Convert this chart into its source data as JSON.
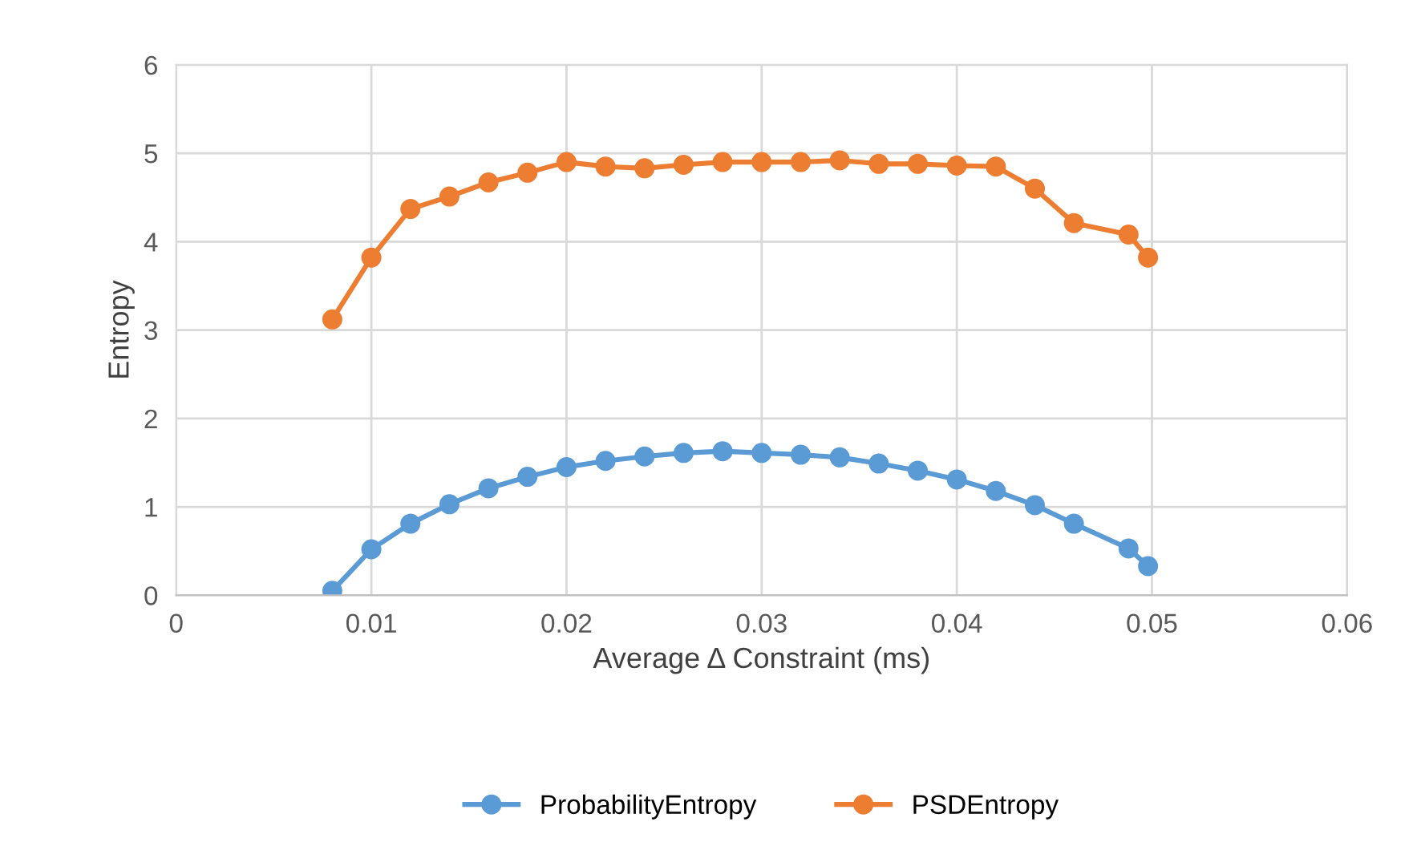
{
  "chart_data": {
    "type": "line",
    "xlabel": "Average Δ Constraint (ms)",
    "ylabel": "Entropy",
    "x": [
      0.008,
      0.01,
      0.012,
      0.014,
      0.016,
      0.018,
      0.02,
      0.022,
      0.024,
      0.026,
      0.028,
      0.03,
      0.032,
      0.034,
      0.036,
      0.038,
      0.04,
      0.042,
      0.044,
      0.046,
      0.0488,
      0.0498
    ],
    "series": [
      {
        "name": "ProbabilityEntropy",
        "color": "#5b9bd5",
        "values": [
          0.05,
          0.52,
          0.81,
          1.03,
          1.21,
          1.34,
          1.45,
          1.52,
          1.57,
          1.61,
          1.63,
          1.61,
          1.59,
          1.56,
          1.49,
          1.41,
          1.31,
          1.18,
          1.02,
          0.81,
          0.53,
          0.33
        ]
      },
      {
        "name": "PSDEntropy",
        "color": "#ed7d31",
        "values": [
          3.12,
          3.82,
          4.37,
          4.51,
          4.67,
          4.78,
          4.9,
          4.85,
          4.83,
          4.87,
          4.9,
          4.9,
          4.9,
          4.92,
          4.88,
          4.88,
          4.86,
          4.85,
          4.6,
          4.21,
          4.08,
          3.82
        ]
      }
    ],
    "xlim": [
      0,
      0.06
    ],
    "xticks": [
      0,
      0.01,
      0.02,
      0.03,
      0.04,
      0.05,
      0.06
    ],
    "ylim": [
      0,
      6
    ],
    "yticks": [
      0,
      1,
      2,
      3,
      4,
      5,
      6
    ],
    "grid": true,
    "legend": "bottom",
    "marker": "circle",
    "line_style": "solid"
  }
}
